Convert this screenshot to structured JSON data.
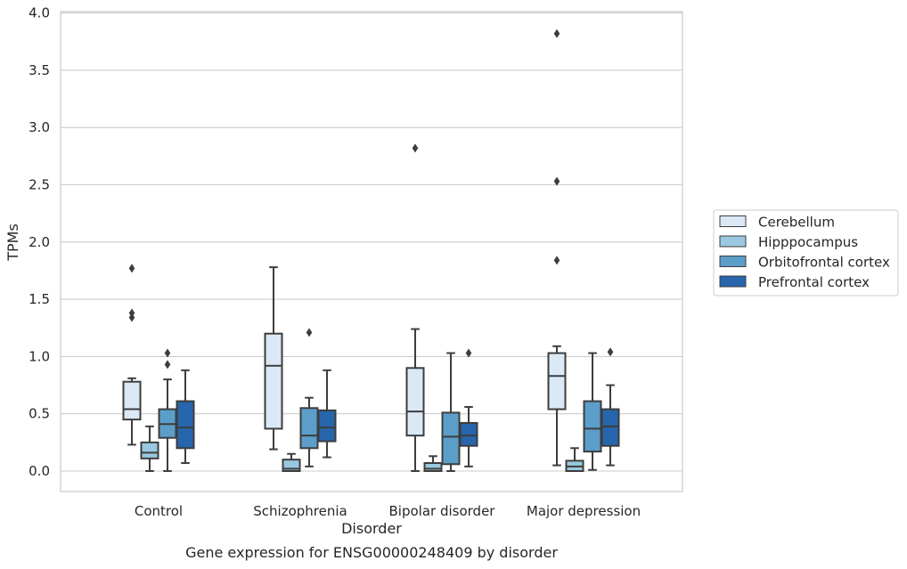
{
  "chart_data": {
    "type": "box",
    "title": "",
    "caption": "Gene expression for ENSG00000248409 by disorder",
    "xlabel": "Disorder",
    "ylabel": "TPMs",
    "ylim": [
      -0.18,
      4.02
    ],
    "yticks": [
      0.0,
      0.5,
      1.0,
      1.5,
      2.0,
      2.5,
      3.0,
      3.5,
      4.0
    ],
    "ytick_labels": [
      "0.0",
      "0.5",
      "1.0",
      "1.5",
      "2.0",
      "2.5",
      "3.0",
      "3.5",
      "4.0"
    ],
    "grid": true,
    "legend_position": "right",
    "categories": [
      "Control",
      "Schizophrenia",
      "Bipolar disorder",
      "Major depression"
    ],
    "series": [
      {
        "name": "Cerebellum",
        "color": "#dbe9f6",
        "boxes": [
          {
            "whisker_low": 0.23,
            "q1": 0.45,
            "median": 0.54,
            "q3": 0.78,
            "whisker_high": 0.81,
            "outliers": [
              1.34,
              1.38,
              1.77
            ]
          },
          {
            "whisker_low": 0.19,
            "q1": 0.37,
            "median": 0.92,
            "q3": 1.2,
            "whisker_high": 1.78,
            "outliers": []
          },
          {
            "whisker_low": 0.0,
            "q1": 0.31,
            "median": 0.52,
            "q3": 0.9,
            "whisker_high": 1.24,
            "outliers": [
              2.82
            ]
          },
          {
            "whisker_low": 0.05,
            "q1": 0.54,
            "median": 0.83,
            "q3": 1.03,
            "whisker_high": 1.09,
            "outliers": [
              1.84,
              2.53,
              3.82
            ]
          }
        ]
      },
      {
        "name": "Hipppocampus",
        "color": "#9ac8e0",
        "boxes": [
          {
            "whisker_low": 0.0,
            "q1": 0.11,
            "median": 0.16,
            "q3": 0.25,
            "whisker_high": 0.39,
            "outliers": []
          },
          {
            "whisker_low": 0.0,
            "q1": 0.0,
            "median": 0.02,
            "q3": 0.1,
            "whisker_high": 0.15,
            "outliers": []
          },
          {
            "whisker_low": 0.0,
            "q1": 0.0,
            "median": 0.02,
            "q3": 0.07,
            "whisker_high": 0.13,
            "outliers": []
          },
          {
            "whisker_low": 0.0,
            "q1": 0.0,
            "median": 0.04,
            "q3": 0.09,
            "whisker_high": 0.2,
            "outliers": []
          }
        ]
      },
      {
        "name": "Orbitofrontal cortex",
        "color": "#5a9ec9",
        "boxes": [
          {
            "whisker_low": 0.0,
            "q1": 0.29,
            "median": 0.41,
            "q3": 0.54,
            "whisker_high": 0.8,
            "outliers": [
              0.93,
              1.03
            ]
          },
          {
            "whisker_low": 0.04,
            "q1": 0.2,
            "median": 0.31,
            "q3": 0.55,
            "whisker_high": 0.64,
            "outliers": [
              1.21
            ]
          },
          {
            "whisker_low": 0.0,
            "q1": 0.06,
            "median": 0.3,
            "q3": 0.51,
            "whisker_high": 1.03,
            "outliers": []
          },
          {
            "whisker_low": 0.01,
            "q1": 0.17,
            "median": 0.37,
            "q3": 0.61,
            "whisker_high": 1.03,
            "outliers": []
          }
        ]
      },
      {
        "name": "Prefrontal cortex",
        "color": "#2765ad",
        "boxes": [
          {
            "whisker_low": 0.07,
            "q1": 0.2,
            "median": 0.38,
            "q3": 0.61,
            "whisker_high": 0.88,
            "outliers": []
          },
          {
            "whisker_low": 0.12,
            "q1": 0.26,
            "median": 0.38,
            "q3": 0.53,
            "whisker_high": 0.88,
            "outliers": []
          },
          {
            "whisker_low": 0.04,
            "q1": 0.22,
            "median": 0.31,
            "q3": 0.42,
            "whisker_high": 0.56,
            "outliers": [
              1.03
            ]
          },
          {
            "whisker_low": 0.05,
            "q1": 0.22,
            "median": 0.39,
            "q3": 0.54,
            "whisker_high": 0.75,
            "outliers": [
              1.04
            ]
          }
        ]
      }
    ]
  }
}
